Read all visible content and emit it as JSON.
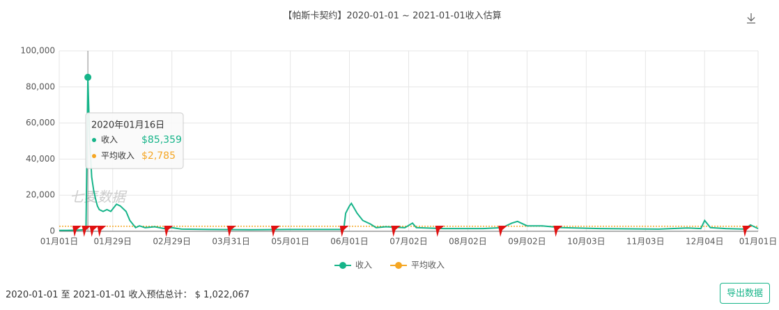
{
  "title": "【帕斯卡契约】2020-01-01 ~ 2021-01-01收入估算",
  "chart_data": {
    "type": "line",
    "x": [
      "01月01日",
      "01月05日",
      "01月10日",
      "01月14日",
      "01月15日",
      "01月16日",
      "01月17日",
      "01月18日",
      "01月19日",
      "01月20日",
      "01月21日",
      "01月22日",
      "01月24日",
      "01月26日",
      "01月28日",
      "01月31日",
      "02月02日",
      "02月05日",
      "02月07日",
      "02月10日",
      "02月12日",
      "02月15日",
      "02月20日",
      "02月25日",
      "02月29日",
      "03月05日",
      "03月20日",
      "04月10日",
      "04月30日",
      "05月20日",
      "05月29日",
      "05月30日",
      "06月01日",
      "06月02日",
      "06月05日",
      "06月08日",
      "06月12日",
      "06月15日",
      "06月20日",
      "06月30日",
      "07月04日",
      "07月06日",
      "07月20日",
      "08月10日",
      "08月20日",
      "08月25日",
      "08月28日",
      "09月02日",
      "09月10日",
      "09月20日",
      "10月10日",
      "11月10日",
      "11月25日",
      "12月02日",
      "12月04日",
      "12月07日",
      "12月15日",
      "12月25日",
      "12月28日",
      "12月30日",
      "01月01日"
    ],
    "series": [
      {
        "name": "收入",
        "color": "#16b489",
        "values": [
          500,
          500,
          600,
          800,
          1000,
          85359,
          50000,
          30000,
          23000,
          18000,
          14000,
          12000,
          11000,
          12000,
          11000,
          15000,
          14000,
          11000,
          6000,
          2000,
          3000,
          2000,
          2500,
          1500,
          2000,
          1200,
          1000,
          900,
          1000,
          1000,
          1000,
          10000,
          14000,
          15500,
          10000,
          6000,
          4000,
          2000,
          2500,
          2000,
          4500,
          2000,
          1500,
          1500,
          2000,
          4500,
          5500,
          3000,
          3000,
          2000,
          1500,
          1200,
          1800,
          1500,
          6000,
          2000,
          1500,
          1200,
          3500,
          2500,
          1500
        ]
      },
      {
        "name": "平均收入",
        "color": "#f5a623",
        "value": 2785
      }
    ],
    "xlim": [
      "01月01日",
      "01月01日"
    ],
    "xticks": [
      "01月01日",
      "01月29日",
      "02月29日",
      "03月31日",
      "05月01日",
      "06月01日",
      "07月02日",
      "08月02日",
      "09月02日",
      "10月03日",
      "11月03日",
      "12月04日",
      "01月01日"
    ],
    "ylim": [
      0,
      100000
    ],
    "yticks": [
      0,
      {
        "value": 20000,
        "label": "20,000"
      },
      {
        "value": 40000,
        "label": "40,000"
      },
      {
        "value": 60000,
        "label": "60,000"
      },
      {
        "value": 80000,
        "label": "80,000"
      },
      {
        "value": 100000,
        "label": "100,000"
      }
    ],
    "grid": true,
    "markers": [
      "01月09日",
      "01月14日",
      "01月18日",
      "01月22日",
      "02月26日",
      "03月30日",
      "04月22日",
      "05月28日",
      "06月24日",
      "07月17日",
      "08月19日",
      "09月17日",
      "12月25日"
    ],
    "highlight": "01月16日",
    "tooltip": {
      "title": "2020年01月16日",
      "items": [
        {
          "name": "收入",
          "label": "$85,359"
        },
        {
          "name": "平均收入",
          "label": "$2,785"
        }
      ]
    },
    "watermark": "七麦数据"
  },
  "footer": {
    "summary": "2020-01-01 至 2021-01-01 收入预估总计：",
    "total": "$ 1,022,067",
    "button": "导出数据"
  }
}
